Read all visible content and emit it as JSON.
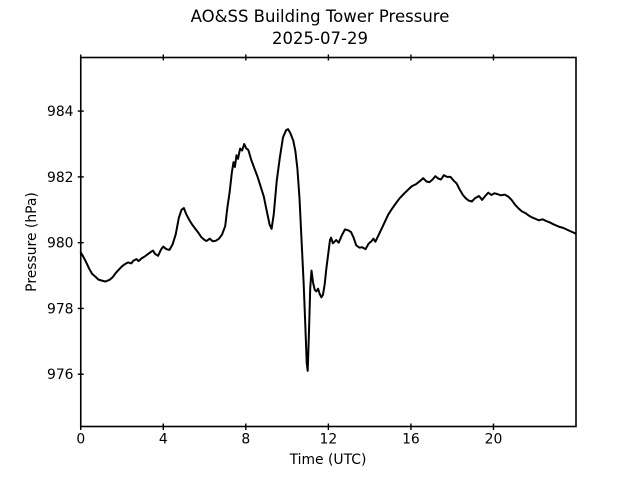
{
  "figure": {
    "background": "#ffffff",
    "text_color": "#000000"
  },
  "chart_data": {
    "type": "line",
    "title": "AO&SS Building Tower Pressure",
    "subtitle": "2025-07-29",
    "xlabel": "Time (UTC)",
    "ylabel": "Pressure (hPa)",
    "xlim": [
      0,
      24
    ],
    "ylim": [
      974.41,
      985.63
    ],
    "xticks": [
      0,
      4,
      8,
      12,
      16,
      20
    ],
    "yticks": [
      976,
      978,
      980,
      982,
      984
    ],
    "grid": false,
    "legend": null,
    "line_color": "#000000",
    "series": [
      {
        "name": "Pressure",
        "points": [
          [
            0.0,
            979.7
          ],
          [
            0.1,
            979.6
          ],
          [
            0.25,
            979.42
          ],
          [
            0.4,
            979.22
          ],
          [
            0.55,
            979.05
          ],
          [
            0.7,
            978.97
          ],
          [
            0.85,
            978.88
          ],
          [
            1.0,
            978.85
          ],
          [
            1.2,
            978.82
          ],
          [
            1.4,
            978.87
          ],
          [
            1.55,
            978.95
          ],
          [
            1.7,
            979.08
          ],
          [
            1.85,
            979.18
          ],
          [
            2.0,
            979.28
          ],
          [
            2.15,
            979.35
          ],
          [
            2.3,
            979.4
          ],
          [
            2.45,
            979.37
          ],
          [
            2.55,
            979.45
          ],
          [
            2.7,
            979.5
          ],
          [
            2.8,
            979.44
          ],
          [
            2.95,
            979.52
          ],
          [
            3.1,
            979.58
          ],
          [
            3.25,
            979.65
          ],
          [
            3.4,
            979.72
          ],
          [
            3.5,
            979.76
          ],
          [
            3.6,
            979.66
          ],
          [
            3.75,
            979.6
          ],
          [
            3.9,
            979.8
          ],
          [
            4.0,
            979.88
          ],
          [
            4.15,
            979.8
          ],
          [
            4.3,
            979.78
          ],
          [
            4.45,
            979.95
          ],
          [
            4.6,
            980.25
          ],
          [
            4.75,
            980.75
          ],
          [
            4.88,
            981.0
          ],
          [
            5.0,
            981.05
          ],
          [
            5.1,
            980.88
          ],
          [
            5.25,
            980.7
          ],
          [
            5.4,
            980.55
          ],
          [
            5.55,
            980.42
          ],
          [
            5.7,
            980.3
          ],
          [
            5.85,
            980.16
          ],
          [
            6.0,
            980.08
          ],
          [
            6.1,
            980.05
          ],
          [
            6.25,
            980.12
          ],
          [
            6.4,
            980.04
          ],
          [
            6.55,
            980.06
          ],
          [
            6.7,
            980.12
          ],
          [
            6.85,
            980.25
          ],
          [
            7.0,
            980.5
          ],
          [
            7.1,
            981.05
          ],
          [
            7.22,
            981.55
          ],
          [
            7.32,
            982.12
          ],
          [
            7.4,
            982.45
          ],
          [
            7.47,
            982.3
          ],
          [
            7.55,
            982.66
          ],
          [
            7.62,
            982.55
          ],
          [
            7.72,
            982.86
          ],
          [
            7.82,
            982.8
          ],
          [
            7.92,
            983.0
          ],
          [
            8.02,
            982.87
          ],
          [
            8.12,
            982.82
          ],
          [
            8.27,
            982.5
          ],
          [
            8.42,
            982.25
          ],
          [
            8.57,
            982.0
          ],
          [
            8.72,
            981.7
          ],
          [
            8.87,
            981.4
          ],
          [
            9.0,
            981.0
          ],
          [
            9.15,
            980.55
          ],
          [
            9.25,
            980.42
          ],
          [
            9.35,
            980.85
          ],
          [
            9.5,
            981.9
          ],
          [
            9.65,
            982.6
          ],
          [
            9.8,
            983.2
          ],
          [
            9.95,
            983.42
          ],
          [
            10.05,
            983.45
          ],
          [
            10.15,
            983.34
          ],
          [
            10.3,
            983.1
          ],
          [
            10.4,
            982.78
          ],
          [
            10.5,
            982.25
          ],
          [
            10.6,
            981.35
          ],
          [
            10.7,
            980.1
          ],
          [
            10.8,
            978.8
          ],
          [
            10.88,
            977.5
          ],
          [
            10.95,
            976.35
          ],
          [
            11.0,
            976.1
          ],
          [
            11.06,
            977.3
          ],
          [
            11.12,
            978.6
          ],
          [
            11.18,
            979.15
          ],
          [
            11.26,
            978.78
          ],
          [
            11.34,
            978.56
          ],
          [
            11.42,
            978.52
          ],
          [
            11.5,
            978.6
          ],
          [
            11.58,
            978.44
          ],
          [
            11.66,
            978.34
          ],
          [
            11.74,
            978.42
          ],
          [
            11.82,
            978.74
          ],
          [
            11.9,
            979.2
          ],
          [
            12.0,
            979.7
          ],
          [
            12.08,
            980.08
          ],
          [
            12.13,
            980.15
          ],
          [
            12.22,
            979.98
          ],
          [
            12.38,
            980.08
          ],
          [
            12.5,
            980.0
          ],
          [
            12.65,
            980.22
          ],
          [
            12.8,
            980.4
          ],
          [
            12.95,
            980.38
          ],
          [
            13.1,
            980.32
          ],
          [
            13.22,
            980.15
          ],
          [
            13.35,
            979.92
          ],
          [
            13.5,
            979.85
          ],
          [
            13.65,
            979.86
          ],
          [
            13.8,
            979.8
          ],
          [
            13.95,
            979.97
          ],
          [
            14.1,
            980.05
          ],
          [
            14.18,
            980.12
          ],
          [
            14.28,
            980.03
          ],
          [
            14.45,
            980.25
          ],
          [
            14.6,
            980.45
          ],
          [
            14.75,
            980.65
          ],
          [
            14.9,
            980.85
          ],
          [
            15.05,
            981.0
          ],
          [
            15.25,
            981.18
          ],
          [
            15.45,
            981.35
          ],
          [
            15.65,
            981.48
          ],
          [
            15.85,
            981.6
          ],
          [
            16.05,
            981.72
          ],
          [
            16.25,
            981.78
          ],
          [
            16.45,
            981.88
          ],
          [
            16.6,
            981.96
          ],
          [
            16.75,
            981.86
          ],
          [
            16.9,
            981.84
          ],
          [
            17.05,
            981.92
          ],
          [
            17.18,
            982.02
          ],
          [
            17.32,
            981.95
          ],
          [
            17.46,
            981.92
          ],
          [
            17.6,
            982.05
          ],
          [
            17.75,
            982.0
          ],
          [
            17.92,
            982.0
          ],
          [
            18.08,
            981.88
          ],
          [
            18.22,
            981.8
          ],
          [
            18.36,
            981.62
          ],
          [
            18.52,
            981.45
          ],
          [
            18.66,
            981.35
          ],
          [
            18.8,
            981.28
          ],
          [
            18.95,
            981.25
          ],
          [
            19.1,
            981.35
          ],
          [
            19.3,
            981.42
          ],
          [
            19.45,
            981.3
          ],
          [
            19.6,
            981.42
          ],
          [
            19.75,
            981.52
          ],
          [
            19.9,
            981.45
          ],
          [
            20.05,
            981.5
          ],
          [
            20.18,
            981.48
          ],
          [
            20.35,
            981.44
          ],
          [
            20.55,
            981.46
          ],
          [
            20.72,
            981.4
          ],
          [
            20.88,
            981.3
          ],
          [
            21.05,
            981.15
          ],
          [
            21.2,
            981.05
          ],
          [
            21.38,
            980.95
          ],
          [
            21.55,
            980.9
          ],
          [
            21.72,
            980.82
          ],
          [
            21.9,
            980.76
          ],
          [
            22.05,
            980.72
          ],
          [
            22.2,
            980.68
          ],
          [
            22.38,
            980.71
          ],
          [
            22.55,
            980.66
          ],
          [
            22.72,
            980.62
          ],
          [
            22.9,
            980.56
          ],
          [
            23.05,
            980.52
          ],
          [
            23.2,
            980.48
          ],
          [
            23.38,
            980.45
          ],
          [
            23.55,
            980.4
          ],
          [
            23.72,
            980.35
          ],
          [
            23.97,
            980.28
          ]
        ]
      }
    ]
  }
}
